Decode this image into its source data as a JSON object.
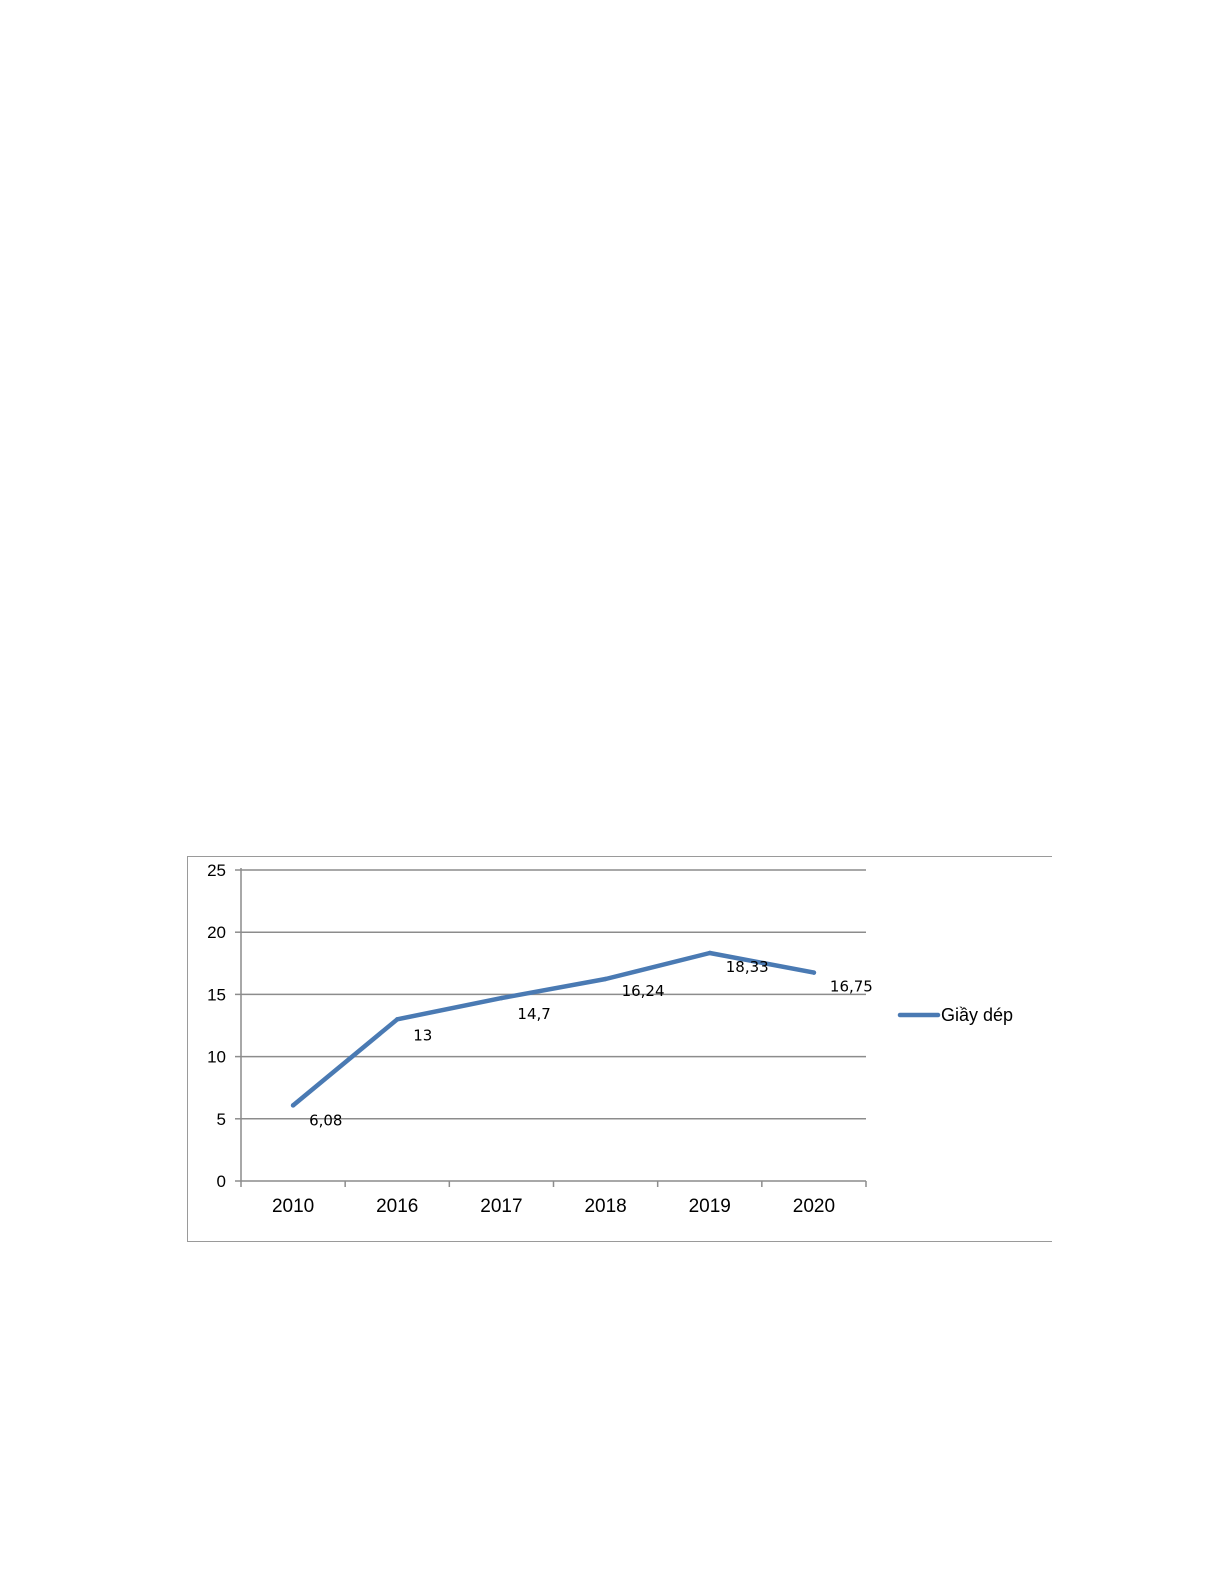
{
  "chart_data": {
    "type": "line",
    "categories": [
      "2010",
      "2016",
      "2017",
      "2018",
      "2019",
      "2020"
    ],
    "series": [
      {
        "name": "Giầy dép",
        "values": [
          6.08,
          13,
          14.7,
          16.24,
          18.33,
          16.75
        ],
        "data_labels": [
          "6,08",
          "13",
          "14,7",
          "16,24",
          "18,33",
          "16,75"
        ],
        "color": "#4a7ab3"
      }
    ],
    "yticks": [
      "0",
      "5",
      "10",
      "15",
      "20",
      "25"
    ],
    "ylim": [
      0,
      25
    ],
    "grid": true,
    "legend_position": "right"
  }
}
